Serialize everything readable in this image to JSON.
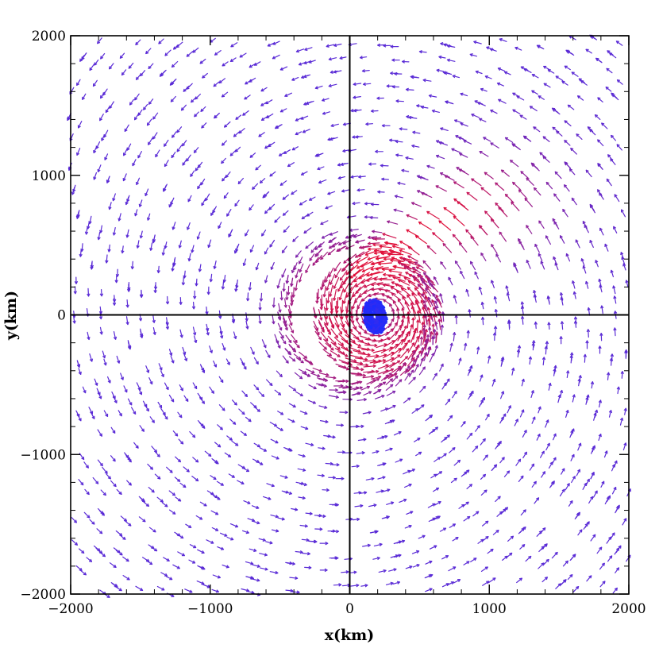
{
  "chart_data": {
    "type": "quiver",
    "title": "",
    "xlabel": "x(km)",
    "ylabel": "y(km)",
    "xlim": [
      -2000,
      2000
    ],
    "ylim": [
      -2000,
      2000
    ],
    "x_ticks": [
      -2000,
      -1000,
      0,
      1000,
      2000
    ],
    "y_ticks": [
      -2000,
      -1000,
      0,
      1000,
      2000
    ],
    "x_tick_labels": [
      "−2000",
      "−1000",
      "0",
      "1000",
      "2000"
    ],
    "y_tick_labels": [
      "−2000",
      "−1000",
      "0",
      "1000",
      "2000"
    ],
    "zero_lines": true,
    "grid": false,
    "legend": "none",
    "vortex_center": [
      200,
      0
    ],
    "colors": {
      "slow": "#5a2bd6",
      "fast": "#e0103a",
      "core": "#1a2cff",
      "axes": "#000000"
    },
    "field_description_note_free": true
  }
}
